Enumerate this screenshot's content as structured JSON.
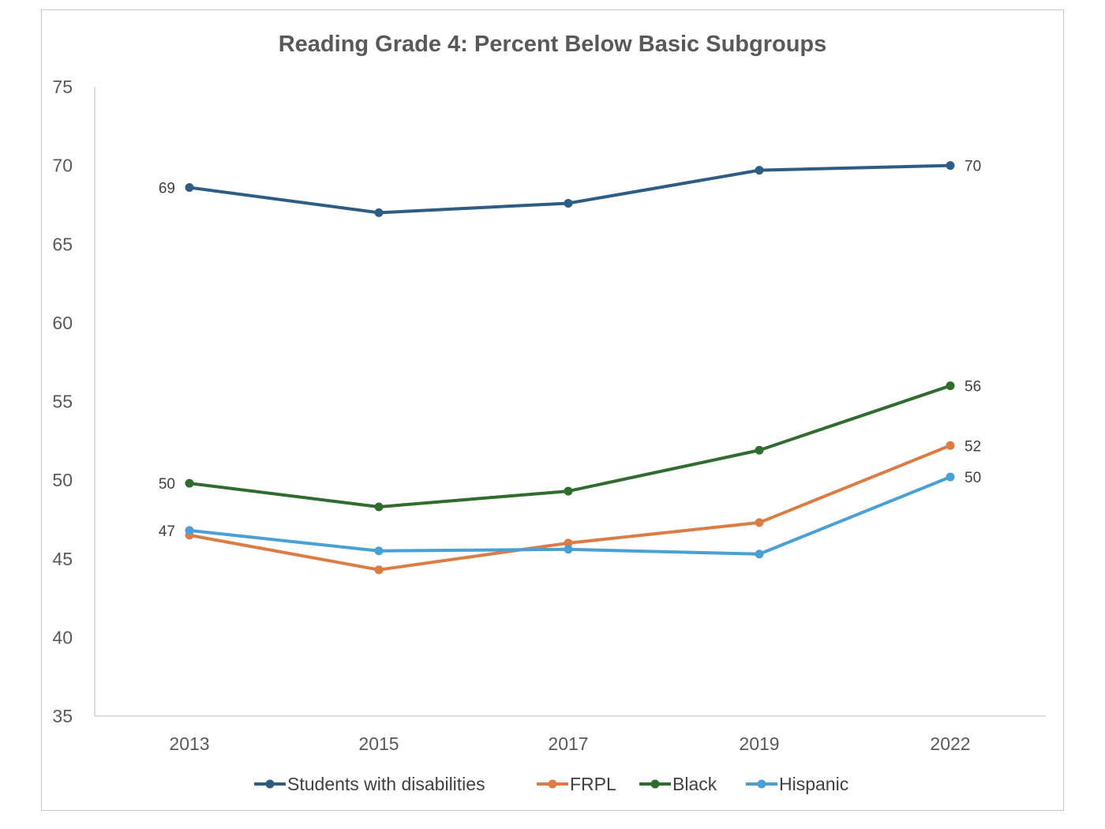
{
  "chart_data": {
    "type": "line",
    "title": "Reading Grade 4: Percent Below Basic Subgroups",
    "xlabel": "",
    "ylabel": "",
    "categories": [
      "2013",
      "2015",
      "2017",
      "2019",
      "2022"
    ],
    "ylim": [
      35,
      75
    ],
    "yticks": [
      35,
      40,
      45,
      50,
      55,
      60,
      65,
      70,
      75
    ],
    "grid": false,
    "legend": "bottom",
    "series": [
      {
        "name": "Students with disabilities",
        "color": "#2e5c82",
        "values": [
          68.6,
          67.0,
          67.6,
          69.7,
          70.0
        ],
        "labels": {
          "first": "69",
          "last": "70"
        }
      },
      {
        "name": "FRPL",
        "color": "#dc7c45",
        "values": [
          46.5,
          44.3,
          46.0,
          47.3,
          52.2
        ],
        "labels": {
          "first": "",
          "last": "52"
        }
      },
      {
        "name": "Black",
        "color": "#2f6c2e",
        "values": [
          49.8,
          48.3,
          49.3,
          51.9,
          56.0
        ],
        "labels": {
          "first": "50",
          "last": "56"
        }
      },
      {
        "name": "Hispanic",
        "color": "#4aa0d6",
        "values": [
          46.8,
          45.5,
          45.6,
          45.3,
          50.2
        ],
        "labels": {
          "first": "47",
          "last": "50"
        }
      }
    ]
  }
}
